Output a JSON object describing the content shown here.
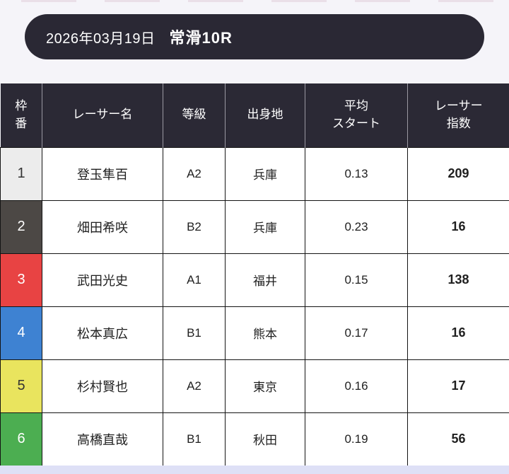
{
  "page": {
    "background": "#f5f4f9",
    "bottom_strip_color": "#dee0f6"
  },
  "header_bar": {
    "date": "2026年03月19日",
    "race": "常滑10R",
    "bg_color": "#2a2834",
    "text_color": "#ffffff"
  },
  "table": {
    "header_bg": "#2b2935",
    "columns": {
      "waku": "枠\n番",
      "name": "レーサー名",
      "class": "等級",
      "origin": "出身地",
      "avg_start": "平均\nスタート",
      "index": "レーサー\n指数"
    },
    "rows": [
      {
        "waku": "1",
        "name": "登玉隼百",
        "class": "A2",
        "origin": "兵庫",
        "avg_start": "0.13",
        "index": "209",
        "waku_bg": "#ececec",
        "waku_color": "#333333"
      },
      {
        "waku": "2",
        "name": "畑田希咲",
        "class": "B2",
        "origin": "兵庫",
        "avg_start": "0.23",
        "index": "16",
        "waku_bg": "#4c4845",
        "waku_color": "#ffffff"
      },
      {
        "waku": "3",
        "name": "武田光史",
        "class": "A1",
        "origin": "福井",
        "avg_start": "0.15",
        "index": "138",
        "waku_bg": "#e84343",
        "waku_color": "#ffffff"
      },
      {
        "waku": "4",
        "name": "松本真広",
        "class": "B1",
        "origin": "熊本",
        "avg_start": "0.17",
        "index": "16",
        "waku_bg": "#3e82d2",
        "waku_color": "#ffffff"
      },
      {
        "waku": "5",
        "name": "杉村賢也",
        "class": "A2",
        "origin": "東京",
        "avg_start": "0.16",
        "index": "17",
        "waku_bg": "#e9e45e",
        "waku_color": "#333333"
      },
      {
        "waku": "6",
        "name": "高橋直哉",
        "class": "B1",
        "origin": "秋田",
        "avg_start": "0.19",
        "index": "56",
        "waku_bg": "#4cae51",
        "waku_color": "#ffffff"
      }
    ]
  }
}
